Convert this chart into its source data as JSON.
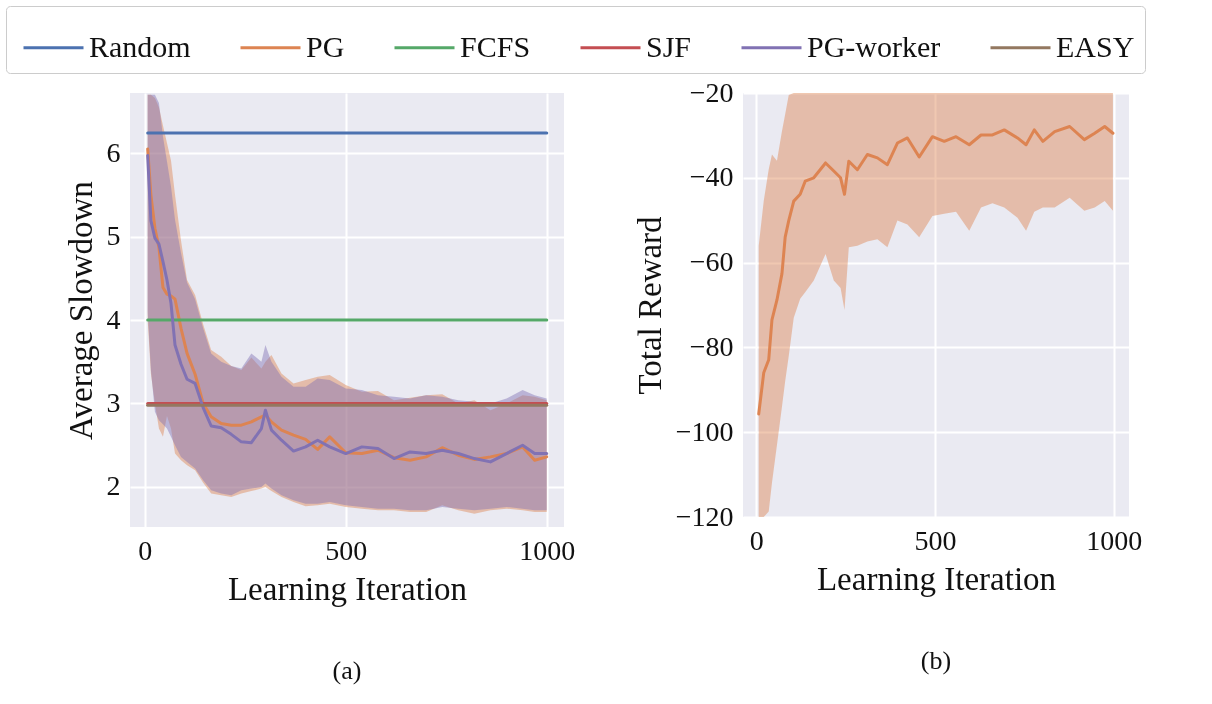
{
  "chart_data": [
    {
      "type": "line",
      "xlabel": "Learning Iteration",
      "ylabel": "Average Slowdown",
      "xlim": [
        -37,
        1043
      ],
      "ylim": [
        1.52,
        6.72
      ],
      "xticks": [
        0,
        500,
        1000
      ],
      "yticks": [
        2,
        3,
        4,
        5,
        6
      ],
      "grid": true,
      "legend": "top",
      "annotations": [
        "(a)"
      ],
      "series": [
        {
          "name": "Random",
          "color": "#4c72b0",
          "x": [
            7,
            1000
          ],
          "values": [
            6.24,
            6.24
          ]
        },
        {
          "name": "PG",
          "color": "#dd8452",
          "x": [
            7,
            15,
            25,
            35,
            45,
            55,
            65,
            75,
            90,
            105,
            125,
            145,
            165,
            190,
            215,
            240,
            265,
            290,
            300,
            315,
            340,
            370,
            400,
            430,
            460,
            500,
            540,
            580,
            620,
            660,
            700,
            740,
            780,
            820,
            860,
            900,
            940,
            970,
            1000
          ],
          "values": [
            6.05,
            5.5,
            5.1,
            4.87,
            4.39,
            4.31,
            4.29,
            4.25,
            3.9,
            3.6,
            3.35,
            3.0,
            2.84,
            2.76,
            2.74,
            2.74,
            2.78,
            2.84,
            2.86,
            2.78,
            2.68,
            2.62,
            2.57,
            2.45,
            2.6,
            2.41,
            2.4,
            2.44,
            2.35,
            2.32,
            2.36,
            2.47,
            2.38,
            2.33,
            2.36,
            2.4,
            2.48,
            2.32,
            2.36
          ],
          "upper": [
            6.7,
            6.7,
            6.66,
            6.55,
            6.33,
            6.12,
            5.91,
            5.5,
            4.95,
            4.48,
            4.3,
            3.95,
            3.64,
            3.56,
            3.45,
            3.4,
            3.55,
            3.42,
            3.5,
            3.58,
            3.36,
            3.24,
            3.28,
            3.32,
            3.34,
            3.22,
            3.14,
            3.15,
            3.04,
            3.07,
            3.1,
            3.11,
            3.0,
            3.04,
            2.92,
            3.0,
            3.1,
            3.08,
            3.04
          ],
          "lower": [
            4.0,
            3.36,
            3.0,
            2.7,
            2.6,
            2.85,
            2.7,
            2.4,
            2.32,
            2.26,
            2.2,
            2.05,
            1.92,
            1.9,
            1.88,
            1.92,
            1.95,
            1.98,
            2.0,
            1.95,
            1.88,
            1.82,
            1.77,
            1.78,
            1.8,
            1.76,
            1.74,
            1.72,
            1.72,
            1.7,
            1.7,
            1.78,
            1.72,
            1.68,
            1.72,
            1.74,
            1.72,
            1.7,
            1.7
          ]
        },
        {
          "name": "FCFS",
          "color": "#55a868",
          "x": [
            7,
            1000
          ],
          "values": [
            4.0,
            4.0
          ]
        },
        {
          "name": "SJF",
          "color": "#c44e52",
          "x": [
            7,
            1000
          ],
          "values": [
            3.0,
            3.0
          ]
        },
        {
          "name": "PG-worker",
          "color": "#8172b3",
          "x": [
            7,
            15,
            25,
            35,
            45,
            55,
            65,
            75,
            90,
            105,
            125,
            145,
            165,
            190,
            215,
            240,
            265,
            290,
            300,
            315,
            340,
            370,
            400,
            430,
            460,
            500,
            540,
            580,
            620,
            660,
            700,
            740,
            780,
            820,
            860,
            900,
            940,
            970,
            1000
          ],
          "values": [
            5.97,
            5.19,
            4.98,
            4.91,
            4.7,
            4.48,
            4.2,
            3.7,
            3.47,
            3.29,
            3.24,
            2.95,
            2.73,
            2.71,
            2.63,
            2.54,
            2.53,
            2.7,
            2.92,
            2.68,
            2.56,
            2.43,
            2.48,
            2.56,
            2.48,
            2.4,
            2.48,
            2.46,
            2.34,
            2.42,
            2.4,
            2.44,
            2.4,
            2.34,
            2.3,
            2.4,
            2.5,
            2.4,
            2.4
          ],
          "upper": [
            6.7,
            6.7,
            6.7,
            6.6,
            6.2,
            5.9,
            5.6,
            5.2,
            4.8,
            4.45,
            4.25,
            3.9,
            3.6,
            3.5,
            3.45,
            3.42,
            3.6,
            3.5,
            3.7,
            3.5,
            3.32,
            3.2,
            3.2,
            3.3,
            3.28,
            3.18,
            3.16,
            3.1,
            3.08,
            3.06,
            3.1,
            3.08,
            3.04,
            3.02,
            3.0,
            3.06,
            3.16,
            3.1,
            3.06
          ],
          "lower": [
            4.1,
            3.4,
            2.9,
            2.8,
            2.75,
            2.7,
            2.6,
            2.5,
            2.36,
            2.3,
            2.22,
            2.08,
            1.96,
            1.92,
            1.9,
            1.96,
            1.98,
            2.0,
            2.04,
            1.98,
            1.9,
            1.84,
            1.8,
            1.8,
            1.82,
            1.78,
            1.76,
            1.74,
            1.74,
            1.72,
            1.72,
            1.76,
            1.74,
            1.72,
            1.74,
            1.76,
            1.74,
            1.72,
            1.72
          ]
        },
        {
          "name": "EASY",
          "color": "#937860",
          "x": [
            7,
            1000
          ],
          "values": [
            2.98,
            2.98
          ]
        }
      ]
    },
    {
      "type": "line",
      "xlabel": "Learning Iteration",
      "ylabel": "Total Reward",
      "xlim": [
        -37,
        1043
      ],
      "ylim": [
        -120,
        -20
      ],
      "xticks": [
        0,
        500,
        1000
      ],
      "yticks": [
        -120,
        -100,
        -80,
        -60,
        -40,
        -20
      ],
      "grid": true,
      "annotations": [
        "(b)"
      ],
      "series": [
        {
          "color": "#dd8452",
          "x": [
            7,
            21,
            35,
            44,
            58,
            72,
            81,
            91,
            105,
            123,
            137,
            161,
            194,
            217,
            236,
            247,
            259,
            283,
            311,
            339,
            367,
            395,
            423,
            456,
            493,
            526,
            559,
            596,
            629,
            661,
            694,
            731,
            755,
            778,
            802,
            835,
            877,
            918,
            947,
            975,
            998
          ],
          "values": [
            -95.7,
            -86,
            -82.9,
            -73.5,
            -68.8,
            -62.6,
            -54,
            -50.1,
            -45.5,
            -43.9,
            -40.8,
            -40,
            -36.5,
            -38.4,
            -40,
            -43.9,
            -36.1,
            -38.1,
            -34.5,
            -35.3,
            -36.9,
            -31.8,
            -30.6,
            -35.1,
            -30.3,
            -31.4,
            -30.3,
            -32.2,
            -29.9,
            -29.9,
            -28.7,
            -30.6,
            -32.2,
            -28.7,
            -31.4,
            -29.1,
            -27.9,
            -31,
            -29.5,
            -27.9,
            -29.5
          ],
          "upper": [
            -56,
            -45.5,
            -38,
            -34.5,
            -36,
            -29,
            -25,
            -20.5,
            -20,
            -20,
            -20,
            -20,
            -20,
            -20,
            -20,
            -20,
            -20,
            -20,
            -20,
            -20,
            -20,
            -20,
            -20,
            -20,
            -20,
            -20,
            -20,
            -20,
            -20,
            -20,
            -20,
            -20,
            -20,
            -20,
            -20,
            -20,
            -20,
            -20,
            -20,
            -20,
            -20
          ],
          "lower": [
            -120,
            -120,
            -118.7,
            -112,
            -103,
            -94,
            -88,
            -82,
            -73,
            -68.5,
            -67,
            -64.2,
            -58,
            -64.2,
            -66,
            -71.2,
            -56.4,
            -56,
            -55,
            -54.5,
            -56.4,
            -50.1,
            -51,
            -54,
            -49,
            -48.5,
            -48,
            -52.5,
            -47,
            -46,
            -47,
            -49.4,
            -52.5,
            -48,
            -47,
            -47,
            -44.7,
            -47.8,
            -47,
            -45.5,
            -47.8
          ]
        }
      ]
    }
  ]
}
